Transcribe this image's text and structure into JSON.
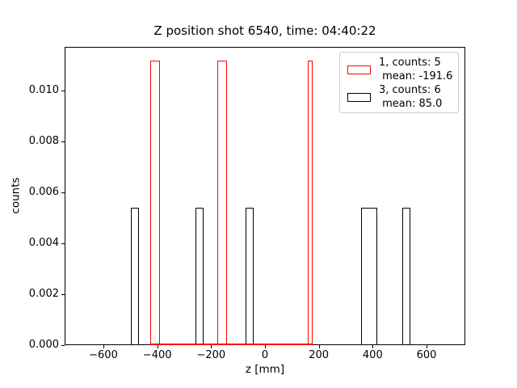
{
  "title": "Z position shot 6540, time: 04:40:22",
  "x_axis": {
    "label": "z [mm]",
    "ticks": [
      -600,
      -400,
      -200,
      0,
      200,
      400,
      600
    ],
    "tick_labels": [
      "−600",
      "−400",
      "−200",
      "0",
      "200",
      "400",
      "600"
    ],
    "lim": [
      -744,
      744
    ]
  },
  "y_axis": {
    "label": "counts",
    "ticks": [
      0.0,
      0.002,
      0.004,
      0.006,
      0.008,
      0.01
    ],
    "tick_labels": [
      "0.000",
      "0.002",
      "0.004",
      "0.006",
      "0.008",
      "0.010"
    ],
    "lim": [
      0,
      0.0117
    ]
  },
  "legend": {
    "entries": [
      {
        "name": "series-1",
        "color": "#ff0000",
        "label": "1, counts: 5\n mean: -191.6"
      },
      {
        "name": "series-3",
        "color": "#000000",
        "label": "3, counts: 6\n mean: 85.0"
      }
    ]
  },
  "chart_data": {
    "type": "bar",
    "subtype": "step-histogram",
    "title": "Z position shot 6540, time: 04:40:22",
    "xlabel": "z [mm]",
    "ylabel": "counts",
    "xlim": [
      -744,
      744
    ],
    "ylim": [
      0,
      0.0117
    ],
    "grid": false,
    "legend_position": "upper-right",
    "series": [
      {
        "name": "1",
        "color": "#ff0000",
        "counts": 5,
        "mean": -191.6,
        "bars": [
          {
            "x0": -427,
            "x1": -391,
            "height": 0.01115
          },
          {
            "x0": -177,
            "x1": -141,
            "height": 0.01115
          },
          {
            "x0": 159,
            "x1": 177,
            "height": 0.01115
          }
        ],
        "zero_line": {
          "x0": -427,
          "x1": 177
        }
      },
      {
        "name": "3",
        "color": "#000000",
        "counts": 6,
        "mean": 85.0,
        "bars": [
          {
            "x0": -499,
            "x1": -468,
            "height": 0.0054
          },
          {
            "x0": -258,
            "x1": -227,
            "height": 0.0054
          },
          {
            "x0": -72,
            "x1": -41,
            "height": 0.0054
          },
          {
            "x0": 356,
            "x1": 418,
            "height": 0.0054
          },
          {
            "x0": 510,
            "x1": 541,
            "height": 0.0054
          }
        ]
      }
    ]
  }
}
